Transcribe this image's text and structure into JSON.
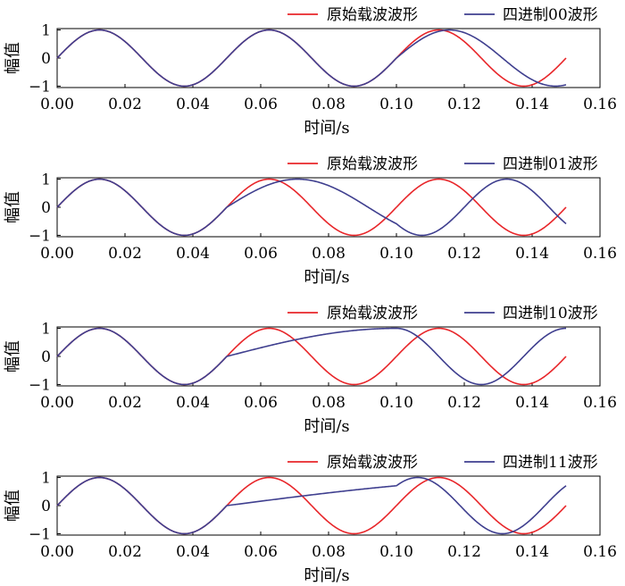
{
  "chart_data": [
    {
      "type": "line",
      "xlabel": "时间/s",
      "ylabel": "幅值",
      "xlim": [
        0,
        0.16
      ],
      "ylim": [
        -1.05,
        1.05
      ],
      "x_ticks": [
        "0.00",
        "0.02",
        "0.04",
        "0.06",
        "0.08",
        "0.10",
        "0.12",
        "0.14",
        "0.16"
      ],
      "y_ticks": [
        "1",
        "0",
        "−1"
      ],
      "legend_position": "top-right",
      "series": [
        {
          "name": "原始载波波形",
          "color": "#e8262a",
          "func": "sin",
          "freq": [
            20,
            20,
            20
          ]
        },
        {
          "name": "四进制00波形",
          "color": "#3f3f8f",
          "func": "sin",
          "freq": [
            20,
            20,
            16
          ]
        }
      ]
    },
    {
      "type": "line",
      "xlabel": "时间/s",
      "ylabel": "幅值",
      "xlim": [
        0,
        0.16
      ],
      "ylim": [
        -1.05,
        1.05
      ],
      "x_ticks": [
        "0.00",
        "0.02",
        "0.04",
        "0.06",
        "0.08",
        "0.10",
        "0.12",
        "0.14",
        "0.16"
      ],
      "y_ticks": [
        "1",
        "0",
        "−1"
      ],
      "legend_position": "top-right",
      "series": [
        {
          "name": "原始载波波形",
          "color": "#e8262a",
          "func": "sin",
          "freq": [
            20,
            20,
            20
          ]
        },
        {
          "name": "四进制01波形",
          "color": "#3f3f8f",
          "func": "sin",
          "freq": [
            20,
            12,
            20
          ]
        }
      ]
    },
    {
      "type": "line",
      "xlabel": "时间/s",
      "ylabel": "幅值",
      "xlim": [
        0,
        0.16
      ],
      "ylim": [
        -1.05,
        1.05
      ],
      "x_ticks": [
        "0.00",
        "0.02",
        "0.04",
        "0.06",
        "0.08",
        "0.10",
        "0.12",
        "0.14",
        "0.16"
      ],
      "y_ticks": [
        "1",
        "0",
        "−1"
      ],
      "legend_position": "top-right",
      "series": [
        {
          "name": "原始载波波形",
          "color": "#e8262a",
          "func": "sin",
          "freq": [
            20,
            20,
            20
          ]
        },
        {
          "name": "四进制10波形",
          "color": "#3f3f8f",
          "func": "sin",
          "freq": [
            20,
            5,
            20
          ]
        }
      ]
    },
    {
      "type": "line",
      "xlabel": "时间/s",
      "ylabel": "幅值",
      "xlim": [
        0,
        0.16
      ],
      "ylim": [
        -1.05,
        1.05
      ],
      "x_ticks": [
        "0.00",
        "0.02",
        "0.04",
        "0.06",
        "0.08",
        "0.10",
        "0.12",
        "0.14",
        "0.16"
      ],
      "y_ticks": [
        "1",
        "0",
        "−1"
      ],
      "legend_position": "top-right",
      "series": [
        {
          "name": "原始载波波形",
          "color": "#e8262a",
          "func": "sin",
          "freq": [
            20,
            20,
            20
          ]
        },
        {
          "name": "四进制11波形",
          "color": "#3f3f8f",
          "func": "sin",
          "freq": [
            20,
            2.5,
            20
          ]
        }
      ]
    }
  ]
}
